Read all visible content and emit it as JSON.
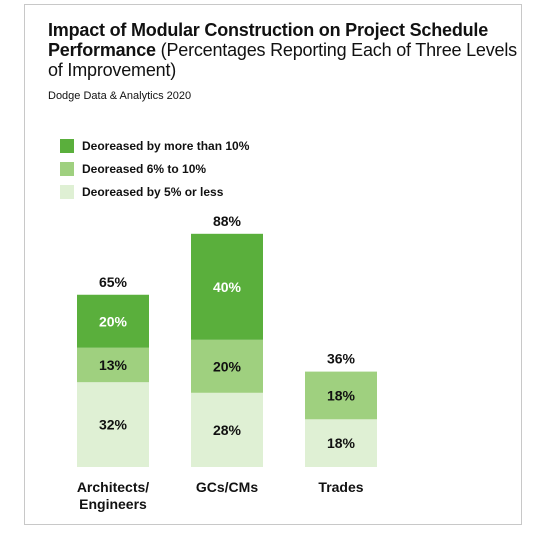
{
  "title": {
    "main": "Impact of Modular Construction on Project Schedule Performance",
    "sub": "(Percentages Reporting Each of Three Levels of Improvement)"
  },
  "source": "Dodge Data & Analytics 2020",
  "colors": {
    "dark": "#5aaf3c",
    "mid": "#9fd07f",
    "light": "#dff0d4"
  },
  "chart_data": {
    "type": "bar",
    "stacked": true,
    "categories": [
      "Architects/ Engineers",
      "GCs/CMs",
      "Trades"
    ],
    "category_lines": [
      [
        "Architects/",
        "Engineers"
      ],
      [
        "GCs/CMs"
      ],
      [
        "Trades"
      ]
    ],
    "series": [
      {
        "name": "Deoreased by 5% or less",
        "values": [
          32,
          28,
          18
        ],
        "labels": [
          "32%",
          "28%",
          "18%"
        ],
        "color": "#dff0d4",
        "label_color": "#111111"
      },
      {
        "name": "Deoreased 6% to 10%",
        "values": [
          13,
          20,
          18
        ],
        "labels": [
          "13%",
          "20%",
          "18%"
        ],
        "color": "#9fd07f",
        "label_color": "#111111"
      },
      {
        "name": "Deoreased by more than 10%",
        "values": [
          20,
          40,
          0
        ],
        "labels": [
          "20%",
          "40%",
          ""
        ],
        "color": "#5aaf3c",
        "label_color": "#ffffff"
      }
    ],
    "totals": [
      "65%",
      "88%",
      "36%"
    ],
    "legend_order": [
      "Deoreased by more than 10%",
      "Deoreased 6% to 10%",
      "Deoreased by 5% or less"
    ],
    "ylim": [
      0,
      100
    ],
    "grid": false,
    "legend_position": "top-left"
  }
}
